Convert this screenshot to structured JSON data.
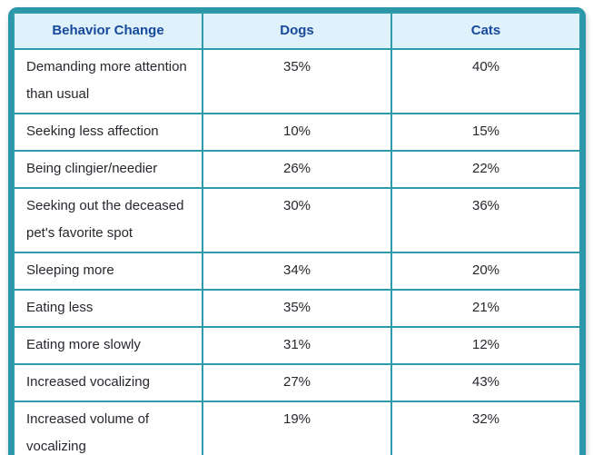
{
  "colors": {
    "border_outer": "#2B97A8",
    "border_inner": "#2D9BAC",
    "header_bg": "#DFF1FA",
    "header_text": "#17499C",
    "body_text": "#26282E",
    "page_bg": "#FFFFFF"
  },
  "table": {
    "columns": [
      "Behavior Change",
      "Dogs",
      "Cats"
    ],
    "rows": [
      {
        "behavior": "Demanding more attention than usual",
        "dogs": "35%",
        "cats": "40%"
      },
      {
        "behavior": "Seeking less affection",
        "dogs": "10%",
        "cats": "15%"
      },
      {
        "behavior": "Being clingier/needier",
        "dogs": "26%",
        "cats": "22%"
      },
      {
        "behavior": "Seeking out the deceased pet's favorite spot",
        "dogs": "30%",
        "cats": "36%"
      },
      {
        "behavior": "Sleeping more",
        "dogs": "34%",
        "cats": "20%"
      },
      {
        "behavior": "Eating less",
        "dogs": "35%",
        "cats": "21%"
      },
      {
        "behavior": "Eating more slowly",
        "dogs": "31%",
        "cats": "12%"
      },
      {
        "behavior": "Increased vocalizing",
        "dogs": "27%",
        "cats": "43%"
      },
      {
        "behavior": "Increased volume of vocalizing",
        "dogs": "19%",
        "cats": "32%"
      }
    ]
  },
  "chart_data": {
    "type": "table",
    "categories": [
      "Demanding more attention than usual",
      "Seeking less affection",
      "Being clingier/needier",
      "Seeking out the deceased pet's favorite spot",
      "Sleeping more",
      "Eating less",
      "Eating more slowly",
      "Increased vocalizing",
      "Increased volume of vocalizing"
    ],
    "series": [
      {
        "name": "Dogs",
        "values": [
          35,
          10,
          26,
          30,
          34,
          35,
          31,
          27,
          19
        ]
      },
      {
        "name": "Cats",
        "values": [
          40,
          15,
          22,
          36,
          20,
          21,
          12,
          43,
          32
        ]
      }
    ],
    "value_unit": "%",
    "legend_position": "column-headers",
    "grid": true
  }
}
